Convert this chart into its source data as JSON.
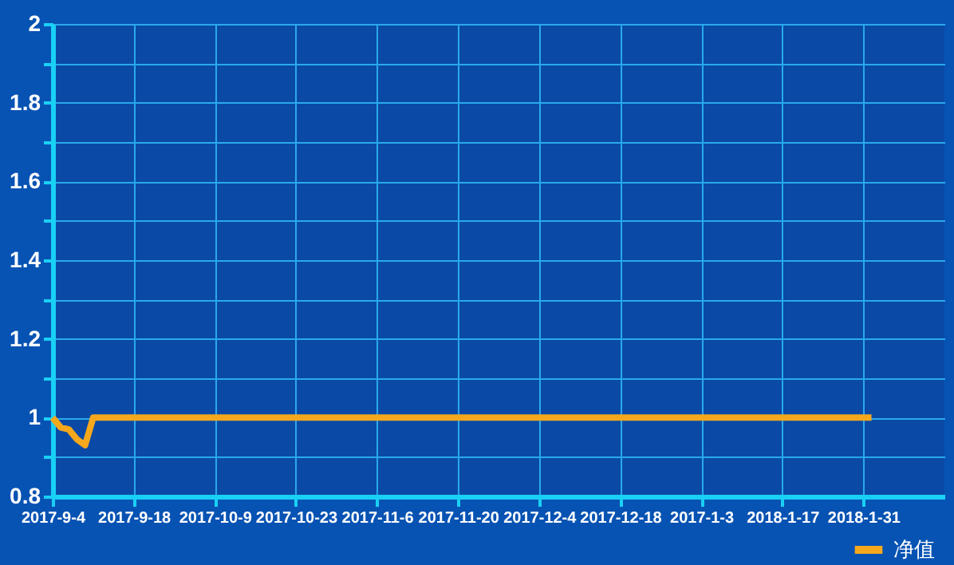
{
  "chart_data": {
    "type": "line",
    "categories": [
      "2017-9-4",
      null,
      null,
      null,
      null,
      null,
      null,
      null,
      null,
      null,
      "2017-9-18",
      null,
      null,
      null,
      null,
      null,
      null,
      null,
      null,
      null,
      "2017-10-9",
      null,
      null,
      null,
      null,
      null,
      null,
      null,
      null,
      null,
      "2017-10-23",
      null,
      null,
      null,
      null,
      null,
      null,
      null,
      null,
      null,
      "2017-11-6",
      null,
      null,
      null,
      null,
      null,
      null,
      null,
      null,
      null,
      "2017-11-20",
      null,
      null,
      null,
      null,
      null,
      null,
      null,
      null,
      null,
      "2017-12-4",
      null,
      null,
      null,
      null,
      null,
      null,
      null,
      null,
      null,
      "2017-12-18",
      null,
      null,
      null,
      null,
      null,
      null,
      null,
      null,
      null,
      "2017-1-3",
      null,
      null,
      null,
      null,
      null,
      null,
      null,
      null,
      null,
      "2018-1-17",
      null,
      null,
      null,
      null,
      null,
      null,
      null,
      null,
      null,
      "2018-1-31",
      null,
      null,
      null,
      null,
      null,
      null,
      null,
      null,
      null,
      null
    ],
    "series": [
      {
        "name": "净值",
        "color": "#f5a81c",
        "values": [
          1.0,
          0.975,
          0.97,
          0.945,
          0.93,
          1.0,
          1.0,
          1.0,
          1.0,
          1.0,
          1.0,
          1.0,
          1.0,
          1.0,
          1.0,
          1.0,
          1.0,
          1.0,
          1.0,
          1.0,
          1.0,
          1.0,
          1.0,
          1.0,
          1.0,
          1.0,
          1.0,
          1.0,
          1.0,
          1.0,
          1.0,
          1.0,
          1.0,
          1.0,
          1.0,
          1.0,
          1.0,
          1.0,
          1.0,
          1.0,
          1.0,
          1.0,
          1.0,
          1.0,
          1.0,
          1.0,
          1.0,
          1.0,
          1.0,
          1.0,
          1.0,
          1.0,
          1.0,
          1.0,
          1.0,
          1.0,
          1.0,
          1.0,
          1.0,
          1.0,
          1.0,
          1.0,
          1.0,
          1.0,
          1.0,
          1.0,
          1.0,
          1.0,
          1.0,
          1.0,
          1.0,
          1.0,
          1.0,
          1.0,
          1.0,
          1.0,
          1.0,
          1.0,
          1.0,
          1.0,
          1.0,
          1.0,
          1.0,
          1.0,
          1.0,
          1.0,
          1.0,
          1.0,
          1.0,
          1.0,
          1.0,
          1.0,
          1.0,
          1.0,
          1.0,
          1.0,
          1.0,
          1.0,
          1.0,
          1.0,
          1.0,
          1.0,
          null,
          null,
          null,
          null,
          null,
          null,
          null,
          null,
          null
        ]
      }
    ],
    "ylim": [
      0.8,
      2
    ],
    "yticks": [
      0.8,
      {
        "value": 0.9,
        "label": null
      },
      1,
      {
        "value": 1.1,
        "label": null
      },
      1.2,
      {
        "value": 1.3,
        "label": null
      },
      1.4,
      {
        "value": 1.5,
        "label": null
      },
      1.6,
      {
        "value": 1.7,
        "label": null
      },
      1.8,
      {
        "value": 1.9,
        "label": null
      },
      2
    ],
    "grid": true,
    "legend": "bottom right",
    "line_style": "solid",
    "marker": "none"
  }
}
